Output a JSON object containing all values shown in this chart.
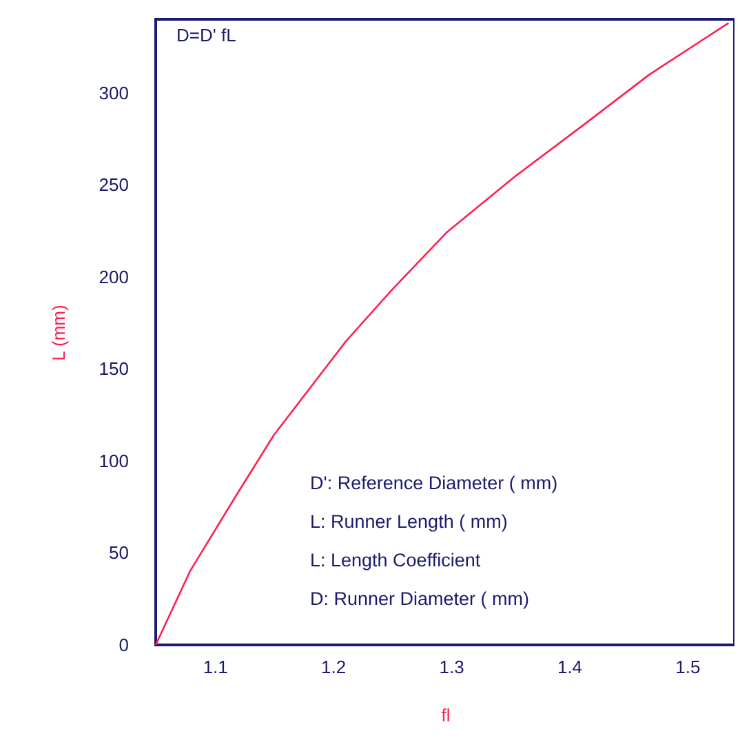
{
  "chart_data": {
    "type": "line",
    "xlabel": "fl",
    "ylabel": "L (mm)",
    "annotations": [
      "D=D' fL",
      "D': Reference Diameter ( mm)",
      "L:  Runner Length ( mm)",
      "L:  Length Coefficient",
      "D:  Runner Diameter ( mm)"
    ],
    "x": [
      1.05,
      1.079,
      1.116,
      1.15,
      1.211,
      1.25,
      1.296,
      1.353,
      1.411,
      1.468,
      1.535
    ],
    "series": [
      {
        "color": "#ff2050",
        "values": [
          0,
          40,
          79,
          114,
          165,
          193,
          224,
          254,
          282,
          310,
          338
        ]
      }
    ],
    "xlim": [
      1.05,
      1.54
    ],
    "ylim": [
      0,
      340
    ],
    "xticks": [
      1.1,
      1.2,
      1.3,
      1.4,
      1.5
    ],
    "yticks": [
      0,
      50,
      100,
      150,
      200,
      250,
      300
    ],
    "grid": false,
    "marker": "none",
    "line_style": "solid"
  }
}
